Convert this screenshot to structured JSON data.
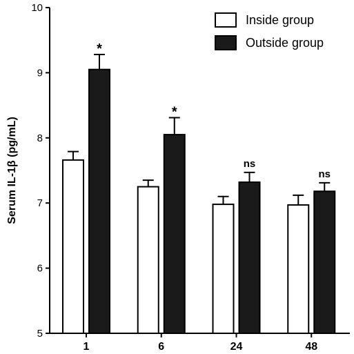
{
  "chart_data": {
    "type": "bar",
    "categories": [
      "1",
      "6",
      "24",
      "48"
    ],
    "ylabel": "Serum IL-1β (pg/mL)",
    "xlabel": "",
    "ylim": [
      5,
      10
    ],
    "yticks": [
      "5",
      "6",
      "7",
      "8",
      "9",
      "10"
    ],
    "grid": false,
    "legend_position": "top-right",
    "series": [
      {
        "name": "Inside group",
        "values": [
          7.66,
          7.25,
          6.98,
          6.97
        ],
        "errors": [
          0.13,
          0.1,
          0.12,
          0.15
        ],
        "fill": "#ffffff",
        "stroke": "#000000"
      },
      {
        "name": "Outside group",
        "values": [
          9.05,
          8.05,
          7.32,
          7.18
        ],
        "errors": [
          0.23,
          0.26,
          0.15,
          0.13
        ],
        "fill": "#1a1a1a",
        "stroke": "#000000"
      }
    ],
    "annotations": [
      "*",
      "*",
      "ns",
      "ns"
    ]
  }
}
